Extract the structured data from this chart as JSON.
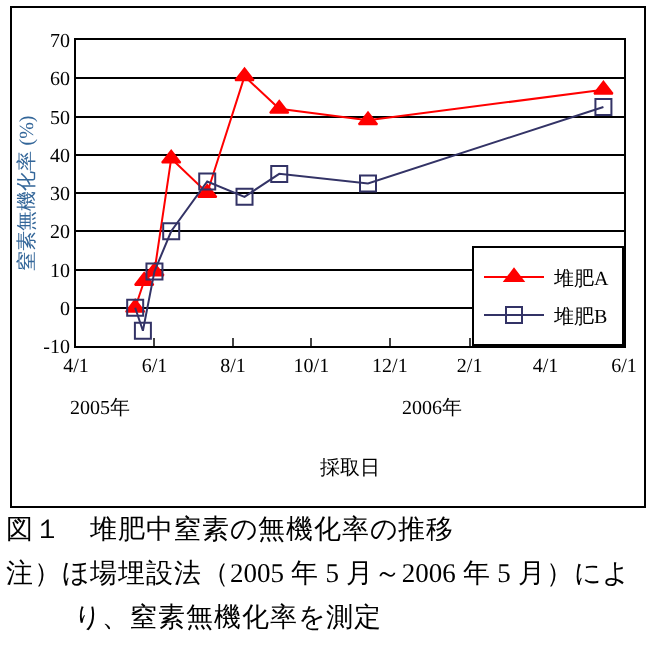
{
  "chart_data": {
    "type": "line",
    "title": "図１　堆肥中窒素の無機化率の推移",
    "xlabel": "採取日",
    "ylabel": "窒素無機化率 (%)",
    "annotations": [
      "2005年",
      "2006年",
      "注）ほ場埋設法（2005 年 5 月～2006 年 5 月）により、窒素無機化率を測定"
    ],
    "x": [
      "2005-05-17",
      "2005-05-24",
      "2005-06-01",
      "2005-06-14",
      "2005-07-12",
      "2005-08-10",
      "2005-09-06",
      "2005-11-14",
      "2006-05-16"
    ],
    "series": [
      {
        "name": "堆肥A",
        "color": "#ff0000",
        "marker": "triangle",
        "values": [
          0,
          7,
          9.5,
          39,
          30,
          60.5,
          52,
          49,
          57
        ]
      },
      {
        "name": "堆肥B",
        "color": "#333366",
        "marker": "square",
        "x": [
          "2005-05-17",
          "2005-05-23",
          "2005-06-01",
          "2005-06-14",
          "2005-07-12",
          "2005-08-10",
          "2005-09-06",
          "2005-11-14",
          "2006-05-16"
        ],
        "values": [
          0,
          -6,
          9.5,
          20,
          33,
          29,
          35,
          32.5,
          52.5
        ]
      }
    ],
    "xlim": [
      "2005-04-01",
      "2006-06-01"
    ],
    "xticks": [
      {
        "value": "2005-04-01",
        "label": "4/1"
      },
      {
        "value": "2005-06-01",
        "label": "6/1"
      },
      {
        "value": "2005-08-01",
        "label": "8/1"
      },
      {
        "value": "2005-10-01",
        "label": "10/1"
      },
      {
        "value": "2005-12-01",
        "label": "12/1"
      },
      {
        "value": "2006-02-01",
        "label": "2/1"
      },
      {
        "value": "2006-04-01",
        "label": "4/1"
      },
      {
        "value": "2006-06-01",
        "label": "6/1"
      }
    ],
    "ylim": [
      -10,
      70
    ],
    "yticks": [
      -10,
      0,
      10,
      20,
      30,
      40,
      50,
      60,
      70
    ],
    "grid": "y",
    "legend": "bottom right",
    "line_style": "solid"
  }
}
